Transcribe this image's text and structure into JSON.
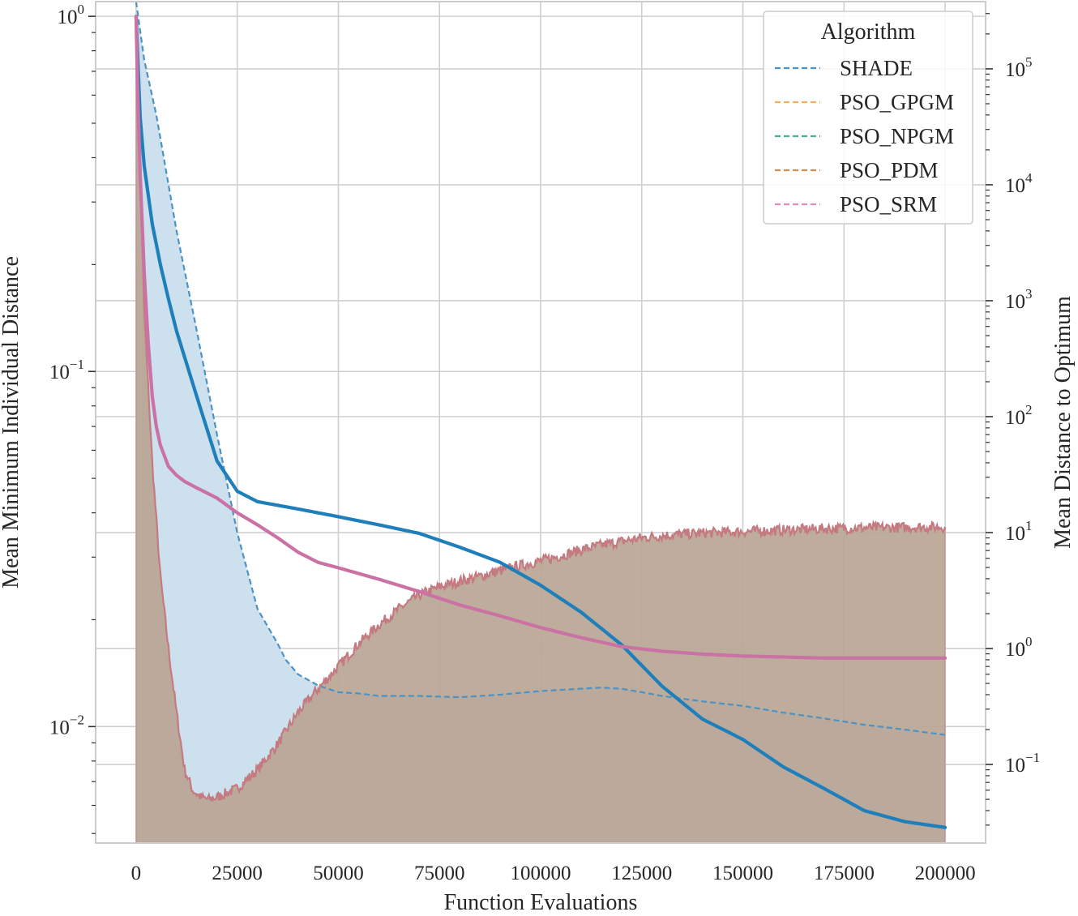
{
  "chart_data": {
    "type": "line",
    "xlabel": "Function Evaluations",
    "ylabel_left": "Mean Minimum Individual Distance",
    "ylabel_right": "Mean Distance to Optimum",
    "xlim": [
      -10000,
      210000
    ],
    "x_ticks": [
      {
        "value": 0,
        "label": "0"
      },
      {
        "value": 25000,
        "label": "25000"
      },
      {
        "value": 50000,
        "label": "50000"
      },
      {
        "value": 75000,
        "label": "75000"
      },
      {
        "value": 100000,
        "label": "100000"
      },
      {
        "value": 125000,
        "label": "125000"
      },
      {
        "value": 150000,
        "label": "150000"
      },
      {
        "value": 175000,
        "label": "175000"
      },
      {
        "value": 200000,
        "label": "200000"
      }
    ],
    "left_axis": {
      "scale": "log",
      "ylim": [
        0.0047,
        1.1
      ],
      "ticks": [
        {
          "value": 1,
          "base": "10",
          "exp": "0"
        },
        {
          "value": 0.1,
          "base": "10",
          "exp": "−1"
        },
        {
          "value": 0.01,
          "base": "10",
          "exp": "−2"
        }
      ]
    },
    "right_axis": {
      "scale": "log",
      "ylim": [
        0.021,
        380000
      ],
      "ticks": [
        {
          "value": 100000,
          "base": "10",
          "exp": "5"
        },
        {
          "value": 10000,
          "base": "10",
          "exp": "4"
        },
        {
          "value": 1000,
          "base": "10",
          "exp": "3"
        },
        {
          "value": 100,
          "base": "10",
          "exp": "2"
        },
        {
          "value": 10,
          "base": "10",
          "exp": "1"
        },
        {
          "value": 1,
          "base": "10",
          "exp": "0"
        },
        {
          "value": 0.1,
          "base": "10",
          "exp": "−1"
        }
      ]
    },
    "grid": true,
    "legend": {
      "title": "Algorithm",
      "position": "top-right",
      "entries": [
        {
          "name": "SHADE",
          "color": "#4c93c5",
          "style": "dashed"
        },
        {
          "name": "PSO_GPGM",
          "color": "#e8b463",
          "style": "dashed"
        },
        {
          "name": "PSO_NPGM",
          "color": "#48ae94",
          "style": "dashed"
        },
        {
          "name": "PSO_PDM",
          "color": "#d38c53",
          "style": "dashed"
        },
        {
          "name": "PSO_SRM",
          "color": "#d88fc4",
          "style": "dashed"
        }
      ]
    },
    "series": [
      {
        "name": "SHADE",
        "axis": "right",
        "style": "dashed-filled",
        "line_color": "#4c93c5",
        "fill_color": "#cce0ee",
        "x": [
          0,
          2000,
          5000,
          10000,
          15000,
          20000,
          25000,
          30000,
          35000,
          37000,
          40000,
          45000,
          50000,
          55000,
          60000,
          70000,
          80000,
          90000,
          100000,
          110000,
          115000,
          120000,
          125000,
          130000,
          140000,
          150000,
          160000,
          170000,
          180000,
          190000,
          200000
        ],
        "y": [
          380000,
          120000,
          40000,
          4000,
          550,
          70,
          10,
          2.2,
          1.1,
          0.8,
          0.6,
          0.48,
          0.42,
          0.41,
          0.39,
          0.39,
          0.38,
          0.4,
          0.43,
          0.45,
          0.46,
          0.45,
          0.42,
          0.39,
          0.35,
          0.32,
          0.28,
          0.25,
          0.22,
          0.2,
          0.18
        ]
      },
      {
        "name": "PSO_PDM",
        "axis": "right",
        "style": "noisy-filled",
        "line_color": "#c57a82",
        "fill_color": "#b9a694",
        "x": [
          0,
          1000,
          2000,
          4000,
          6000,
          8000,
          10000,
          12000,
          14000,
          16000,
          18000,
          20000,
          22000,
          25000,
          30000,
          35000,
          40000,
          45000,
          50000,
          55000,
          60000,
          65000,
          70000,
          75000,
          80000,
          85000,
          90000,
          95000,
          100000,
          105000,
          110000,
          115000,
          120000,
          125000,
          130000,
          135000,
          140000,
          150000,
          160000,
          170000,
          180000,
          190000,
          200000
        ],
        "y": [
          300000,
          15000,
          800,
          40,
          4.2,
          1.0,
          0.28,
          0.09,
          0.06,
          0.052,
          0.05,
          0.052,
          0.056,
          0.062,
          0.09,
          0.15,
          0.28,
          0.45,
          0.7,
          1.1,
          1.6,
          2.2,
          2.9,
          3.4,
          3.8,
          4.2,
          4.7,
          5.2,
          5.7,
          6.3,
          7.1,
          7.8,
          8.4,
          9.0,
          9.4,
          9.7,
          9.9,
          10.2,
          10.5,
          10.8,
          11.0,
          11.1,
          11.2
        ]
      },
      {
        "name": "SHADE",
        "axis": "left",
        "style": "solid",
        "line_color": "#1f7fbb",
        "x": [
          0,
          1000,
          2000,
          4000,
          6000,
          8000,
          10000,
          15000,
          20000,
          25000,
          30000,
          40000,
          50000,
          60000,
          70000,
          80000,
          90000,
          100000,
          110000,
          120000,
          130000,
          140000,
          150000,
          160000,
          170000,
          180000,
          190000,
          200000
        ],
        "y": [
          1.0,
          0.52,
          0.38,
          0.26,
          0.2,
          0.16,
          0.13,
          0.085,
          0.056,
          0.046,
          0.043,
          0.041,
          0.039,
          0.037,
          0.035,
          0.032,
          0.029,
          0.025,
          0.021,
          0.017,
          0.013,
          0.0105,
          0.0092,
          0.0077,
          0.0067,
          0.0058,
          0.0054,
          0.0052
        ]
      },
      {
        "name": "PSO_SRM",
        "axis": "left",
        "style": "solid",
        "line_color": "#cb72a5",
        "x": [
          0,
          500,
          1000,
          2000,
          3000,
          4000,
          5000,
          6000,
          8000,
          10000,
          12000,
          15000,
          20000,
          25000,
          30000,
          35000,
          40000,
          45000,
          50000,
          60000,
          70000,
          80000,
          90000,
          100000,
          110000,
          120000,
          130000,
          140000,
          150000,
          160000,
          170000,
          180000,
          190000,
          200000
        ],
        "y": [
          1.0,
          0.55,
          0.36,
          0.19,
          0.12,
          0.085,
          0.07,
          0.062,
          0.054,
          0.051,
          0.049,
          0.047,
          0.044,
          0.04,
          0.037,
          0.034,
          0.031,
          0.029,
          0.028,
          0.026,
          0.024,
          0.022,
          0.0205,
          0.019,
          0.0178,
          0.0168,
          0.0163,
          0.016,
          0.0158,
          0.0157,
          0.0156,
          0.0156,
          0.0156,
          0.0156
        ]
      }
    ]
  }
}
